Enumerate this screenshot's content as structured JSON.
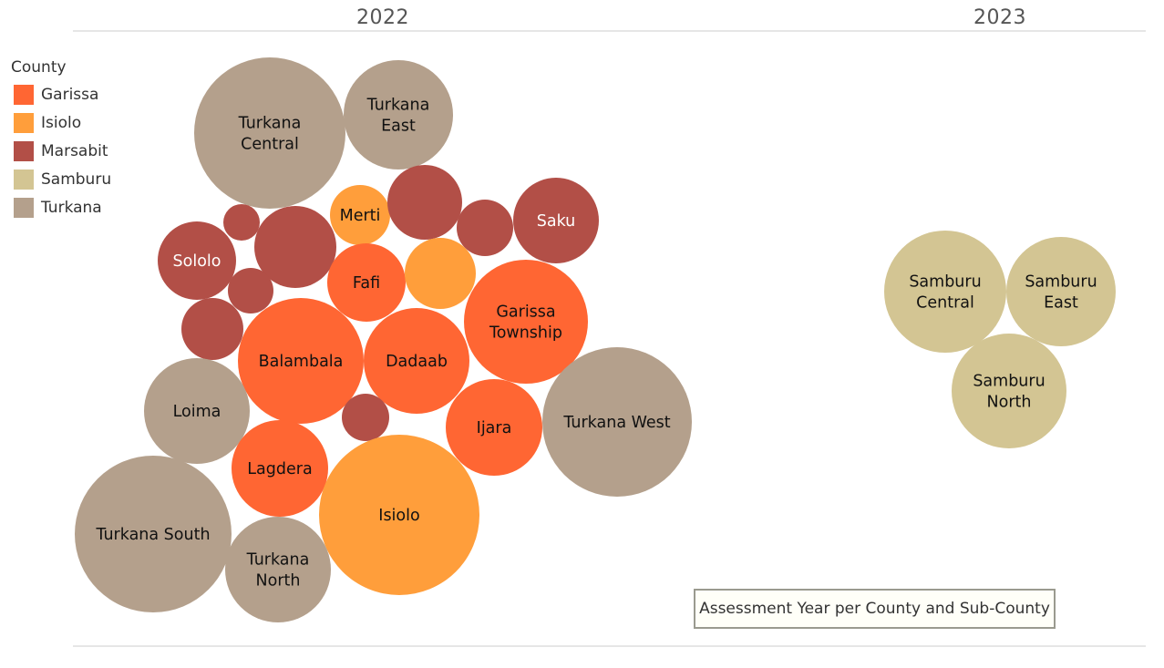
{
  "colors": {
    "Garissa": "#ff6633",
    "Isiolo": "#ff9e3b",
    "Marsabit": "#b24f47",
    "Samburu": "#d3c593",
    "Turkana": "#b4a08c"
  },
  "legend": {
    "title": "County",
    "items": [
      {
        "label": "Garissa",
        "color": "#ff6633"
      },
      {
        "label": "Isiolo",
        "color": "#ff9e3b"
      },
      {
        "label": "Marsabit",
        "color": "#b24f47"
      },
      {
        "label": "Samburu",
        "color": "#d3c593"
      },
      {
        "label": "Turkana",
        "color": "#b4a08c"
      }
    ]
  },
  "caption": "Assessment Year per County and Sub-County",
  "chart_data": {
    "type": "packed-bubble",
    "columns": [
      "2022",
      "2023"
    ],
    "bubbles": [
      {
        "year": "2022",
        "county": "Turkana",
        "label": [
          "Turkana",
          "Central"
        ]
      },
      {
        "year": "2022",
        "county": "Turkana",
        "label": [
          "Turkana",
          "East"
        ]
      },
      {
        "year": "2022",
        "county": "Isiolo",
        "label": [
          "Merti"
        ]
      },
      {
        "year": "2022",
        "county": "Marsabit",
        "label": []
      },
      {
        "year": "2022",
        "county": "Marsabit",
        "label": []
      },
      {
        "year": "2022",
        "county": "Marsabit",
        "label": [
          "Saku"
        ]
      },
      {
        "year": "2022",
        "county": "Marsabit",
        "label": []
      },
      {
        "year": "2022",
        "county": "Marsabit",
        "label": []
      },
      {
        "year": "2022",
        "county": "Marsabit",
        "label": [
          "Sololo"
        ]
      },
      {
        "year": "2022",
        "county": "Garissa",
        "label": [
          "Fafi"
        ]
      },
      {
        "year": "2022",
        "county": "Isiolo",
        "label": []
      },
      {
        "year": "2022",
        "county": "Marsabit",
        "label": []
      },
      {
        "year": "2022",
        "county": "Garissa",
        "label": [
          "Garissa",
          "Township"
        ]
      },
      {
        "year": "2022",
        "county": "Marsabit",
        "label": []
      },
      {
        "year": "2022",
        "county": "Garissa",
        "label": [
          "Balambala"
        ]
      },
      {
        "year": "2022",
        "county": "Garissa",
        "label": [
          "Dadaab"
        ]
      },
      {
        "year": "2022",
        "county": "Turkana",
        "label": [
          "Loima"
        ]
      },
      {
        "year": "2022",
        "county": "Turkana",
        "label": [
          "Turkana West"
        ]
      },
      {
        "year": "2022",
        "county": "Marsabit",
        "label": []
      },
      {
        "year": "2022",
        "county": "Garissa",
        "label": [
          "Ijara"
        ]
      },
      {
        "year": "2022",
        "county": "Garissa",
        "label": [
          "Lagdera"
        ]
      },
      {
        "year": "2022",
        "county": "Turkana",
        "label": [
          "Turkana South"
        ]
      },
      {
        "year": "2022",
        "county": "Isiolo",
        "label": [
          "Isiolo"
        ]
      },
      {
        "year": "2022",
        "county": "Turkana",
        "label": [
          "Turkana",
          "North"
        ]
      },
      {
        "year": "2023",
        "county": "Samburu",
        "label": [
          "Samburu",
          "Central"
        ]
      },
      {
        "year": "2023",
        "county": "Samburu",
        "label": [
          "Samburu",
          "East"
        ]
      },
      {
        "year": "2023",
        "county": "Samburu",
        "label": [
          "Samburu",
          "North"
        ]
      }
    ]
  }
}
